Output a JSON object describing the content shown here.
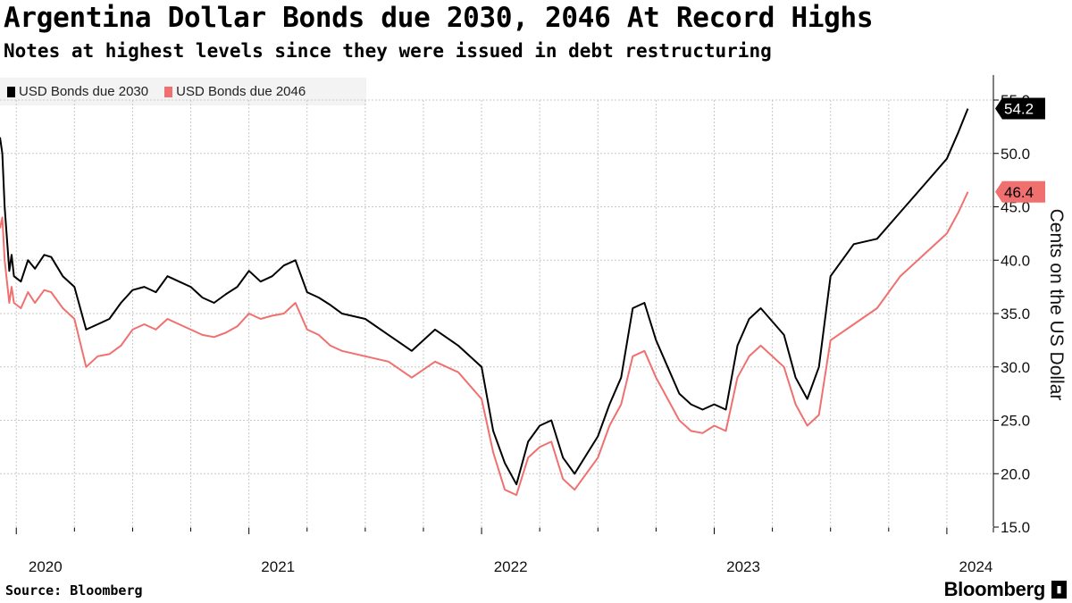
{
  "header": {
    "title": "Argentina Dollar Bonds due 2030, 2046 At Record Highs",
    "subtitle": "Notes at highest levels since they were issued in debt restructuring"
  },
  "legend": [
    {
      "label": "USD Bonds due 2030",
      "color": "#000000"
    },
    {
      "label": "USD Bonds due 2046",
      "color": "#f07070"
    }
  ],
  "footer": {
    "source": "Source: Bloomberg",
    "brand": "Bloomberg"
  },
  "chart_data": {
    "type": "line",
    "title": "Argentina Dollar Bonds due 2030, 2046 At Record Highs",
    "subtitle": "Notes at highest levels since they were issued in debt restructuring",
    "xlabel": "",
    "ylabel": "Cents on the US Dollar",
    "ylim": [
      15,
      55
    ],
    "xlim": [
      2019.93,
      2024.2
    ],
    "yticks": [
      15,
      20,
      25,
      30,
      35,
      40,
      45,
      50,
      55
    ],
    "ytick_labels": [
      "15.0",
      "20.0",
      "25.0",
      "30.0",
      "35.0",
      "40.0",
      "45.0",
      "50.0",
      "55.0"
    ],
    "xticks": [
      2020,
      2021,
      2022,
      2023,
      2024
    ],
    "xtick_labels": [
      "2020",
      "2021",
      "2022",
      "2023",
      "2024"
    ],
    "grid": true,
    "legend_position": "top-left",
    "series": [
      {
        "name": "USD Bonds due 2030",
        "color": "#000000",
        "last_value_label": "54.2",
        "x": [
          2019.93,
          2019.94,
          2019.95,
          2019.97,
          2019.98,
          2019.99,
          2020.02,
          2020.05,
          2020.08,
          2020.12,
          2020.15,
          2020.2,
          2020.25,
          2020.3,
          2020.35,
          2020.4,
          2020.45,
          2020.5,
          2020.55,
          2020.6,
          2020.65,
          2020.7,
          2020.75,
          2020.8,
          2020.85,
          2020.9,
          2020.95,
          2021.0,
          2021.05,
          2021.1,
          2021.15,
          2021.2,
          2021.25,
          2021.3,
          2021.35,
          2021.4,
          2021.5,
          2021.6,
          2021.7,
          2021.8,
          2021.9,
          2022.0,
          2022.05,
          2022.1,
          2022.15,
          2022.2,
          2022.25,
          2022.3,
          2022.35,
          2022.4,
          2022.5,
          2022.55,
          2022.6,
          2022.65,
          2022.7,
          2022.75,
          2022.8,
          2022.85,
          2022.9,
          2022.95,
          2023.0,
          2023.05,
          2023.1,
          2023.15,
          2023.2,
          2023.3,
          2023.35,
          2023.4,
          2023.45,
          2023.5,
          2023.6,
          2023.7,
          2023.8,
          2023.9,
          2024.0,
          2024.05,
          2024.09
        ],
        "values": [
          51.5,
          50.0,
          45.0,
          39.0,
          40.5,
          38.5,
          38.0,
          40.0,
          39.2,
          40.5,
          40.3,
          38.5,
          37.5,
          33.5,
          34.0,
          34.5,
          36.0,
          37.2,
          37.5,
          37.0,
          38.5,
          38.0,
          37.5,
          36.5,
          36.0,
          36.8,
          37.5,
          39.0,
          38.0,
          38.5,
          39.5,
          40.0,
          37.0,
          36.5,
          35.8,
          35.0,
          34.5,
          33.0,
          31.5,
          33.5,
          32.0,
          30.0,
          24.0,
          21.0,
          19.0,
          23.0,
          24.5,
          25.0,
          21.5,
          20.0,
          23.5,
          26.5,
          29.0,
          35.5,
          36.0,
          32.5,
          30.0,
          27.5,
          26.5,
          26.0,
          26.5,
          26.0,
          32.0,
          34.5,
          35.5,
          33.0,
          29.0,
          27.0,
          30.0,
          38.5,
          41.5,
          42.0,
          44.5,
          47.0,
          49.5,
          52.0,
          54.2
        ]
      },
      {
        "name": "USD Bonds due 2046",
        "color": "#f07070",
        "last_value_label": "46.4",
        "x": [
          2019.93,
          2019.94,
          2019.95,
          2019.97,
          2019.98,
          2019.99,
          2020.02,
          2020.05,
          2020.08,
          2020.12,
          2020.15,
          2020.2,
          2020.25,
          2020.3,
          2020.35,
          2020.4,
          2020.45,
          2020.5,
          2020.55,
          2020.6,
          2020.65,
          2020.7,
          2020.75,
          2020.8,
          2020.85,
          2020.9,
          2020.95,
          2021.0,
          2021.05,
          2021.1,
          2021.15,
          2021.2,
          2021.25,
          2021.3,
          2021.35,
          2021.4,
          2021.5,
          2021.6,
          2021.7,
          2021.8,
          2021.9,
          2022.0,
          2022.05,
          2022.1,
          2022.15,
          2022.2,
          2022.25,
          2022.3,
          2022.35,
          2022.4,
          2022.5,
          2022.55,
          2022.6,
          2022.65,
          2022.7,
          2022.75,
          2022.8,
          2022.85,
          2022.9,
          2022.95,
          2023.0,
          2023.05,
          2023.1,
          2023.15,
          2023.2,
          2023.3,
          2023.35,
          2023.4,
          2023.45,
          2023.5,
          2023.6,
          2023.7,
          2023.8,
          2023.9,
          2024.0,
          2024.05,
          2024.09
        ],
        "values": [
          43.0,
          44.0,
          40.0,
          36.0,
          37.5,
          36.0,
          35.5,
          37.0,
          36.0,
          37.2,
          37.0,
          35.5,
          34.5,
          30.0,
          31.0,
          31.2,
          32.0,
          33.5,
          34.0,
          33.5,
          34.5,
          34.0,
          33.5,
          33.0,
          32.8,
          33.2,
          33.8,
          35.0,
          34.5,
          34.8,
          35.0,
          36.0,
          33.5,
          33.0,
          32.0,
          31.5,
          31.0,
          30.5,
          29.0,
          30.5,
          29.5,
          27.0,
          22.0,
          18.5,
          18.0,
          21.5,
          22.5,
          23.0,
          19.5,
          18.5,
          21.5,
          24.5,
          26.5,
          31.0,
          31.5,
          29.0,
          27.0,
          25.0,
          24.0,
          23.8,
          24.5,
          24.0,
          29.0,
          31.0,
          32.0,
          30.0,
          26.5,
          24.5,
          25.5,
          32.5,
          34.0,
          35.5,
          38.5,
          40.5,
          42.5,
          44.5,
          46.4
        ]
      }
    ]
  }
}
